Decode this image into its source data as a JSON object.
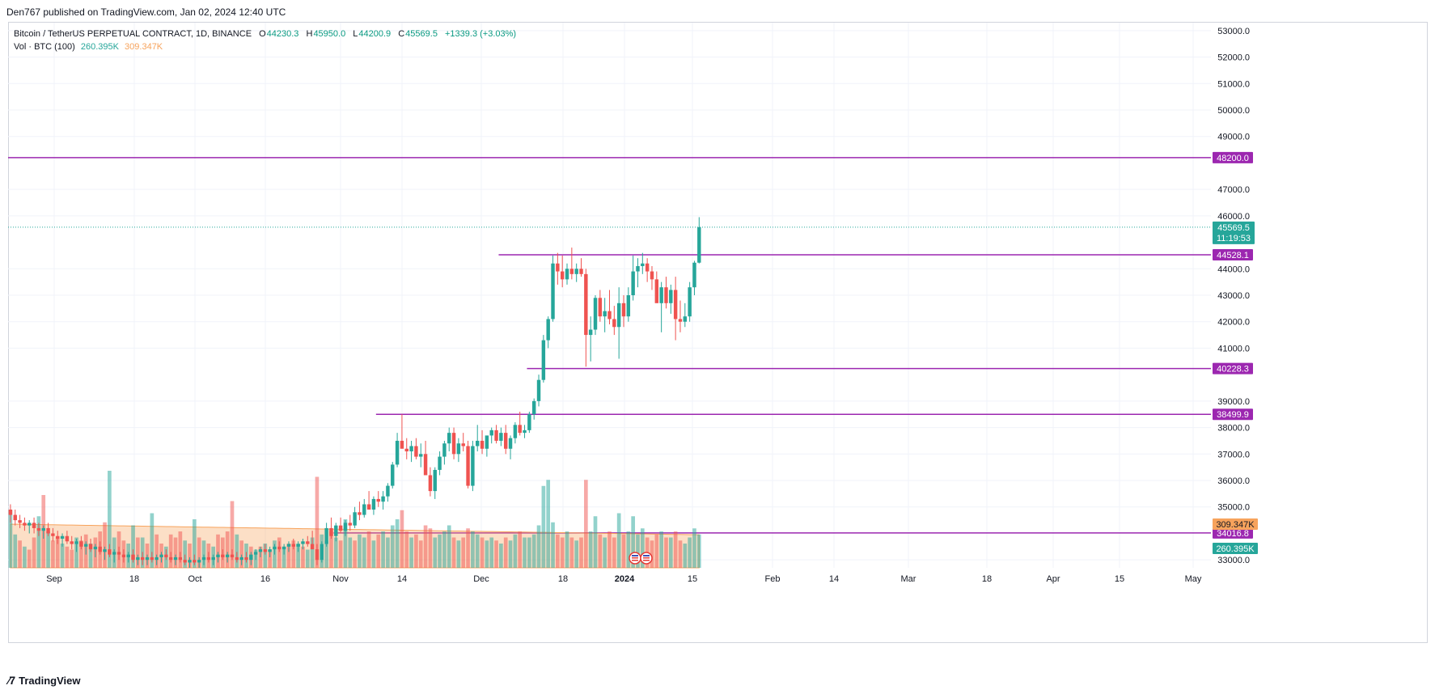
{
  "header": {
    "published": "Den767 published on TradingView.com, Jan 02, 2024 12:40 UTC"
  },
  "legend": {
    "symbol": "Bitcoin / TetherUS PERPETUAL CONTRACT, 1D, BINANCE",
    "o_label": "O",
    "o": "44230.3",
    "h_label": "H",
    "h": "45950.0",
    "l_label": "L",
    "l": "44200.9",
    "c_label": "C",
    "c": "45569.5",
    "change": "+1339.3 (+3.03%)",
    "vol_label": "Vol · BTC (100)",
    "vol": "260.395K",
    "vol_ma": "309.347K"
  },
  "footer": {
    "brand": "TradingView",
    "logo_icon": "tradingview-logo-icon"
  },
  "colors": {
    "up": "#26a69a",
    "down": "#ef5350",
    "level": "#9c27b0",
    "vol_ma": "#f7a35c",
    "grid": "#f0f3fa",
    "axis_text": "#131722"
  },
  "chart_data": {
    "type": "candlestick",
    "x_axis_ticks": [
      "Sep",
      "18",
      "Oct",
      "16",
      "Nov",
      "14",
      "Dec",
      "18",
      "2024",
      "15",
      "Feb",
      "14",
      "Mar",
      "18",
      "Apr",
      "15",
      "May"
    ],
    "y_axis_ticks": [
      "53000.0",
      "52000.0",
      "51000.0",
      "50000.0",
      "49000.0",
      "47000.0",
      "46000.0",
      "44000.0",
      "43000.0",
      "42000.0",
      "41000.0",
      "39000.0",
      "38000.0",
      "37000.0",
      "36000.0",
      "35000.0",
      "33000.0"
    ],
    "ylim": [
      32700,
      53300
    ],
    "last_price": 45569.5,
    "last_price_label": "45569.5",
    "countdown": "11:19:53",
    "levels": [
      {
        "price": 48200.0,
        "label": "48200.0",
        "start": "2023-08-23"
      },
      {
        "price": 44528.1,
        "label": "44528.1",
        "start": "2023-12-05"
      },
      {
        "price": 40228.3,
        "label": "40228.3",
        "start": "2023-12-11"
      },
      {
        "price": 38499.9,
        "label": "38499.9",
        "start": "2023-11-09"
      },
      {
        "price": 34016.8,
        "label": "34016.8",
        "start": "2023-10-31"
      }
    ],
    "volume_labels": {
      "vol_ma": "309.347K",
      "vol": "260.395K"
    },
    "x_start": "2023-08-23",
    "candles": [
      [
        34900,
        35100,
        34400,
        34700
      ],
      [
        34700,
        34900,
        34300,
        34500
      ],
      [
        34500,
        34700,
        34200,
        34400
      ],
      [
        34400,
        34600,
        34100,
        34300
      ],
      [
        34300,
        34500,
        34000,
        34400
      ],
      [
        34400,
        34600,
        34000,
        34200
      ],
      [
        34200,
        34400,
        33900,
        34100
      ],
      [
        34100,
        34300,
        33800,
        34200
      ],
      [
        34200,
        34400,
        33900,
        34000
      ],
      [
        34000,
        34200,
        33700,
        33900
      ],
      [
        33900,
        34100,
        33600,
        33800
      ],
      [
        33800,
        34000,
        33500,
        33900
      ],
      [
        33900,
        34100,
        33600,
        33700
      ],
      [
        33700,
        33900,
        33400,
        33600
      ],
      [
        33600,
        33800,
        33300,
        33700
      ],
      [
        33700,
        33900,
        33400,
        33500
      ],
      [
        33500,
        33700,
        33200,
        33600
      ],
      [
        33600,
        33800,
        33300,
        33400
      ],
      [
        33400,
        33600,
        33100,
        33500
      ],
      [
        33500,
        33700,
        33200,
        33300
      ],
      [
        33300,
        33500,
        33000,
        33400
      ],
      [
        33400,
        33600,
        33100,
        33200
      ],
      [
        33200,
        33400,
        32900,
        33300
      ],
      [
        33300,
        33500,
        33000,
        33200
      ],
      [
        33200,
        33400,
        32900,
        33100
      ],
      [
        33100,
        33300,
        32900,
        33200
      ],
      [
        33200,
        33400,
        32900,
        33000
      ],
      [
        33000,
        33200,
        32800,
        33100
      ],
      [
        33100,
        33300,
        32800,
        33000
      ],
      [
        33000,
        33200,
        32800,
        33100
      ],
      [
        33100,
        33300,
        32900,
        33000
      ],
      [
        33000,
        33200,
        32800,
        33100
      ],
      [
        33100,
        33300,
        32900,
        33200
      ],
      [
        33200,
        33400,
        33000,
        33100
      ],
      [
        33100,
        33300,
        32900,
        33000
      ],
      [
        33000,
        33200,
        32800,
        33100
      ],
      [
        33100,
        33300,
        32900,
        33000
      ],
      [
        33000,
        33200,
        32800,
        32900
      ],
      [
        32900,
        33100,
        32700,
        33000
      ],
      [
        33000,
        33200,
        32800,
        32900
      ],
      [
        32900,
        33100,
        32700,
        33000
      ],
      [
        33000,
        33200,
        32800,
        33100
      ],
      [
        33100,
        33300,
        32900,
        33000
      ],
      [
        33000,
        33200,
        32800,
        33100
      ],
      [
        33100,
        33300,
        32900,
        33200
      ],
      [
        33200,
        33400,
        33000,
        33100
      ],
      [
        33100,
        33300,
        32900,
        33200
      ],
      [
        33200,
        33400,
        33000,
        33100
      ],
      [
        33100,
        33300,
        32900,
        33000
      ],
      [
        33000,
        33200,
        32800,
        33100
      ],
      [
        33100,
        33300,
        32900,
        33000
      ],
      [
        33000,
        33300,
        32800,
        33200
      ],
      [
        33200,
        33400,
        33000,
        33300
      ],
      [
        33300,
        33500,
        33100,
        33400
      ],
      [
        33400,
        33600,
        33200,
        33300
      ],
      [
        33300,
        33500,
        33100,
        33400
      ],
      [
        33400,
        33600,
        33200,
        33500
      ],
      [
        33500,
        33700,
        33300,
        33400
      ],
      [
        33400,
        33600,
        33200,
        33500
      ],
      [
        33500,
        33700,
        33300,
        33600
      ],
      [
        33600,
        33800,
        33400,
        33500
      ],
      [
        33500,
        33700,
        33300,
        33600
      ],
      [
        33600,
        33800,
        33400,
        33700
      ],
      [
        33700,
        33900,
        33500,
        33600
      ],
      [
        33600,
        34100,
        33500,
        33400
      ],
      [
        33400,
        33600,
        32800,
        33000
      ],
      [
        33000,
        33700,
        32900,
        33600
      ],
      [
        33600,
        34400,
        33500,
        34200
      ],
      [
        34200,
        34600,
        33800,
        33900
      ],
      [
        33900,
        34400,
        33700,
        34300
      ],
      [
        34300,
        34600,
        34000,
        34100
      ],
      [
        34100,
        34500,
        33900,
        34400
      ],
      [
        34400,
        34700,
        34100,
        34300
      ],
      [
        34300,
        35000,
        34200,
        34800
      ],
      [
        34800,
        35200,
        34500,
        34700
      ],
      [
        34700,
        35300,
        34600,
        35100
      ],
      [
        35100,
        35600,
        34900,
        34900
      ],
      [
        34900,
        35400,
        34700,
        35300
      ],
      [
        35300,
        35600,
        35000,
        35200
      ],
      [
        35200,
        35600,
        34900,
        35400
      ],
      [
        35400,
        35900,
        35200,
        35800
      ],
      [
        35800,
        36700,
        35700,
        36600
      ],
      [
        36600,
        37800,
        36500,
        37500
      ],
      [
        37500,
        38500,
        37300,
        37200
      ],
      [
        37200,
        37600,
        36800,
        37100
      ],
      [
        37100,
        37500,
        36700,
        37300
      ],
      [
        37300,
        37600,
        36800,
        36900
      ],
      [
        36900,
        37400,
        36500,
        37000
      ],
      [
        37000,
        37500,
        36200,
        36200
      ],
      [
        36200,
        36500,
        35400,
        35600
      ],
      [
        35600,
        36500,
        35300,
        36400
      ],
      [
        36400,
        37100,
        36200,
        36900
      ],
      [
        36900,
        37500,
        36600,
        37400
      ],
      [
        37400,
        38000,
        37100,
        37800
      ],
      [
        37800,
        38000,
        36800,
        37000
      ],
      [
        37000,
        37600,
        36700,
        37400
      ],
      [
        37400,
        37800,
        37100,
        37300
      ],
      [
        37300,
        37500,
        35700,
        35800
      ],
      [
        35800,
        37500,
        35600,
        37300
      ],
      [
        37300,
        38100,
        37100,
        37500
      ],
      [
        37500,
        37900,
        37000,
        37200
      ],
      [
        37200,
        37600,
        36900,
        37700
      ],
      [
        37700,
        38000,
        37400,
        37900
      ],
      [
        37900,
        38100,
        37400,
        37500
      ],
      [
        37500,
        38000,
        37300,
        37800
      ],
      [
        37800,
        38100,
        37000,
        37200
      ],
      [
        37200,
        37700,
        36800,
        37600
      ],
      [
        37600,
        38200,
        37400,
        38100
      ],
      [
        38100,
        38600,
        37700,
        37800
      ],
      [
        37800,
        38100,
        37600,
        37900
      ],
      [
        37900,
        38600,
        37800,
        38500
      ],
      [
        38500,
        39100,
        38300,
        39000
      ],
      [
        39000,
        40000,
        38800,
        39800
      ],
      [
        39800,
        41500,
        39700,
        41300
      ],
      [
        41300,
        42200,
        41000,
        42100
      ],
      [
        42100,
        44500,
        42000,
        44200
      ],
      [
        44200,
        44600,
        43400,
        43900
      ],
      [
        43900,
        44500,
        43300,
        43600
      ],
      [
        43600,
        44200,
        43400,
        44000
      ],
      [
        44000,
        44800,
        43600,
        43800
      ],
      [
        43800,
        44200,
        43500,
        44000
      ],
      [
        44000,
        44400,
        43700,
        43800
      ],
      [
        43800,
        44000,
        40300,
        41500
      ],
      [
        41500,
        42200,
        40500,
        41700
      ],
      [
        41700,
        43000,
        41500,
        42900
      ],
      [
        42900,
        43200,
        42000,
        42200
      ],
      [
        42200,
        42900,
        41600,
        42400
      ],
      [
        42400,
        43200,
        41900,
        42100
      ],
      [
        42100,
        42600,
        41500,
        41800
      ],
      [
        41800,
        43300,
        40600,
        42700
      ],
      [
        42700,
        43000,
        41800,
        42200
      ],
      [
        42200,
        43300,
        42000,
        43000
      ],
      [
        43000,
        44500,
        42800,
        43900
      ],
      [
        43900,
        44400,
        43300,
        44100
      ],
      [
        44100,
        44600,
        43800,
        44200
      ],
      [
        44200,
        44400,
        43500,
        43900
      ],
      [
        43900,
        44100,
        43200,
        43600
      ],
      [
        43600,
        43900,
        42800,
        42700
      ],
      [
        42700,
        43500,
        41600,
        43300
      ],
      [
        43300,
        43700,
        42500,
        42700
      ],
      [
        42700,
        43400,
        42300,
        43200
      ],
      [
        43200,
        43700,
        41300,
        42100
      ],
      [
        42100,
        42800,
        41600,
        42000
      ],
      [
        42000,
        42700,
        41800,
        42200
      ],
      [
        42200,
        43500,
        42000,
        43300
      ],
      [
        43300,
        44300,
        43000,
        44230.3
      ],
      [
        44230.3,
        45950,
        44200.9,
        45569.5
      ]
    ],
    "volumes": [
      [
        0.95,
        1
      ],
      [
        0.55,
        1
      ],
      [
        0.45,
        0
      ],
      [
        0.35,
        1
      ],
      [
        0.3,
        0
      ],
      [
        0.5,
        0
      ],
      [
        0.85,
        1
      ],
      [
        1.2,
        0
      ],
      [
        0.6,
        1
      ],
      [
        0.45,
        0
      ],
      [
        0.5,
        0
      ],
      [
        0.4,
        1
      ],
      [
        0.35,
        0
      ],
      [
        0.3,
        0
      ],
      [
        0.5,
        1
      ],
      [
        0.45,
        0
      ],
      [
        0.55,
        0
      ],
      [
        0.4,
        1
      ],
      [
        0.5,
        0
      ],
      [
        0.6,
        0
      ],
      [
        0.75,
        0
      ],
      [
        1.6,
        1
      ],
      [
        0.5,
        1
      ],
      [
        0.6,
        0
      ],
      [
        0.45,
        0
      ],
      [
        0.4,
        1
      ],
      [
        0.7,
        1
      ],
      [
        0.5,
        0
      ],
      [
        0.5,
        1
      ],
      [
        0.4,
        0
      ],
      [
        0.9,
        1
      ],
      [
        0.55,
        0
      ],
      [
        0.4,
        0
      ],
      [
        0.35,
        1
      ],
      [
        0.55,
        0
      ],
      [
        0.5,
        0
      ],
      [
        0.6,
        0
      ],
      [
        0.45,
        1
      ],
      [
        0.4,
        0
      ],
      [
        0.8,
        1
      ],
      [
        0.5,
        0
      ],
      [
        0.45,
        1
      ],
      [
        0.4,
        0
      ],
      [
        0.35,
        1
      ],
      [
        0.55,
        0
      ],
      [
        0.5,
        0
      ],
      [
        0.6,
        0
      ],
      [
        1.1,
        0
      ],
      [
        0.55,
        1
      ],
      [
        0.45,
        0
      ],
      [
        0.4,
        1
      ],
      [
        0.35,
        0
      ],
      [
        0.3,
        1
      ],
      [
        0.35,
        0
      ],
      [
        0.4,
        1
      ],
      [
        0.3,
        0
      ],
      [
        0.45,
        1
      ],
      [
        0.5,
        0
      ],
      [
        0.35,
        1
      ],
      [
        0.4,
        0
      ],
      [
        0.45,
        0
      ],
      [
        0.4,
        1
      ],
      [
        0.35,
        0
      ],
      [
        0.3,
        1
      ],
      [
        0.5,
        1
      ],
      [
        1.5,
        0
      ],
      [
        0.55,
        1
      ],
      [
        0.45,
        1
      ],
      [
        0.6,
        0
      ],
      [
        0.5,
        1
      ],
      [
        0.45,
        0
      ],
      [
        0.8,
        1
      ],
      [
        0.5,
        1
      ],
      [
        0.45,
        0
      ],
      [
        0.55,
        1
      ],
      [
        0.5,
        1
      ],
      [
        0.6,
        0
      ],
      [
        0.45,
        1
      ],
      [
        0.55,
        0
      ],
      [
        0.6,
        1
      ],
      [
        0.5,
        1
      ],
      [
        0.7,
        1
      ],
      [
        0.8,
        1
      ],
      [
        0.95,
        0
      ],
      [
        0.6,
        0
      ],
      [
        0.5,
        1
      ],
      [
        0.55,
        0
      ],
      [
        0.45,
        0
      ],
      [
        0.7,
        0
      ],
      [
        0.65,
        0
      ],
      [
        0.5,
        1
      ],
      [
        0.55,
        1
      ],
      [
        0.6,
        1
      ],
      [
        0.7,
        1
      ],
      [
        0.5,
        0
      ],
      [
        0.45,
        1
      ],
      [
        0.5,
        0
      ],
      [
        0.65,
        0
      ],
      [
        0.6,
        1
      ],
      [
        0.55,
        1
      ],
      [
        0.5,
        0
      ],
      [
        0.45,
        1
      ],
      [
        0.5,
        1
      ],
      [
        0.45,
        0
      ],
      [
        0.4,
        1
      ],
      [
        0.5,
        0
      ],
      [
        0.45,
        1
      ],
      [
        0.55,
        1
      ],
      [
        0.6,
        0
      ],
      [
        0.5,
        1
      ],
      [
        0.5,
        1
      ],
      [
        0.55,
        1
      ],
      [
        0.7,
        1
      ],
      [
        1.35,
        1
      ],
      [
        1.45,
        1
      ],
      [
        0.75,
        1
      ],
      [
        0.55,
        0
      ],
      [
        0.5,
        0
      ],
      [
        0.6,
        1
      ],
      [
        0.5,
        0
      ],
      [
        0.45,
        1
      ],
      [
        0.5,
        0
      ],
      [
        1.45,
        0
      ],
      [
        0.6,
        1
      ],
      [
        0.85,
        1
      ],
      [
        0.55,
        0
      ],
      [
        0.5,
        1
      ],
      [
        0.6,
        0
      ],
      [
        0.5,
        0
      ],
      [
        0.9,
        1
      ],
      [
        0.55,
        0
      ],
      [
        0.6,
        1
      ],
      [
        0.85,
        1
      ],
      [
        0.55,
        1
      ],
      [
        0.65,
        1
      ],
      [
        0.5,
        0
      ],
      [
        0.45,
        0
      ],
      [
        0.55,
        0
      ],
      [
        0.6,
        1
      ],
      [
        0.5,
        0
      ],
      [
        0.5,
        1
      ],
      [
        0.6,
        0
      ],
      [
        0.45,
        0
      ],
      [
        0.4,
        1
      ],
      [
        0.5,
        1
      ],
      [
        0.65,
        1
      ],
      [
        0.55,
        1
      ]
    ]
  }
}
